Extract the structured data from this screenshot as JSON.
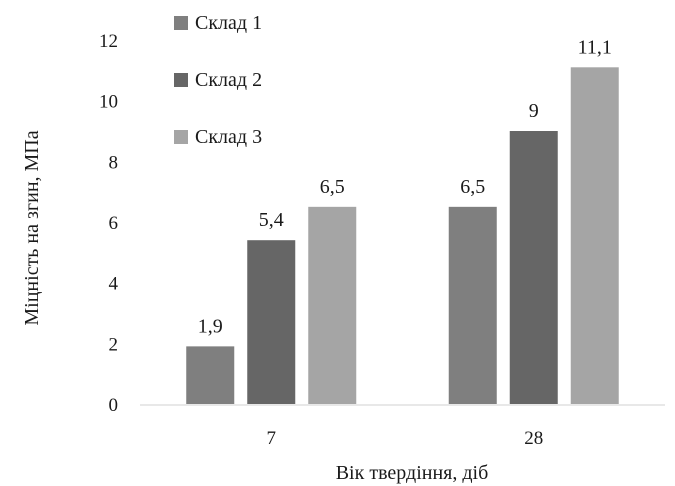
{
  "chart_data": {
    "type": "bar",
    "categories": [
      "7",
      "28"
    ],
    "series": [
      {
        "name": "Склад 1",
        "values": [
          1.9,
          6.5
        ],
        "labels": [
          "1,9",
          "6,5"
        ],
        "color": "#7f7f7f"
      },
      {
        "name": "Склад 2",
        "values": [
          5.4,
          9
        ],
        "labels": [
          "5,4",
          "9"
        ],
        "color": "#666666"
      },
      {
        "name": "Склад 3",
        "values": [
          6.5,
          11.1
        ],
        "labels": [
          "6,5",
          "11,1"
        ],
        "color": "#a5a5a5"
      }
    ],
    "xlabel": "Вік твердіння, діб",
    "ylabel": "Міцність на згин, МПа",
    "ylim": [
      0,
      12
    ],
    "yticks": [
      0,
      2,
      4,
      6,
      8,
      10,
      12
    ],
    "grid": false,
    "legend_position": "top-left"
  }
}
